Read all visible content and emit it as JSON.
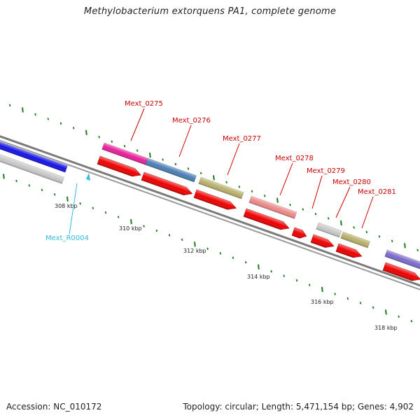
{
  "title": "Methylobacterium extorquens PA1, complete genome",
  "footer": {
    "accession": "Accession: NC_010172",
    "topology": "Topology: circular; Length: 5,471,154 bp; Genes: 4,902"
  },
  "colors": {
    "backbone": "#7a7a7a",
    "tick": "#1e7a1e",
    "strand_cds": "#ee0000",
    "cds_label": "#cc0000",
    "rna_label": "#33bbdd"
  },
  "ruler": {
    "unit": "kbp",
    "labels": [
      "308 kbp",
      "310 kbp",
      "312 kbp",
      "314 kbp",
      "316 kbp",
      "318 kbp"
    ],
    "major_positions_kbp": [
      308,
      310,
      312,
      314,
      316,
      318
    ]
  },
  "genes": [
    {
      "label": "Mext_0275",
      "color": "#e8209a",
      "type": "CDS"
    },
    {
      "label": "Mext_0276",
      "color": "#4a7fb5",
      "type": "CDS"
    },
    {
      "label": "Mext_0277",
      "color": "#b8b06a",
      "type": "CDS"
    },
    {
      "label": "Mext_0278",
      "color": "#ee8888",
      "type": "CDS"
    },
    {
      "label": "Mext_0279",
      "color": "#c8c8c8",
      "type": "CDS"
    },
    {
      "label": "Mext_0280",
      "color": "#b8b06a",
      "type": "CDS"
    },
    {
      "label": "Mext_0281",
      "color": "#7a6acc",
      "type": "CDS"
    },
    {
      "label": "Mext_R0004",
      "color": "#33bbdd",
      "type": "RNA"
    }
  ],
  "unlabeled_features": [
    {
      "name": "upstream-gene-blue",
      "color": "#1414e6"
    },
    {
      "name": "upstream-gene-grey",
      "color": "#c8c8c8"
    }
  ]
}
